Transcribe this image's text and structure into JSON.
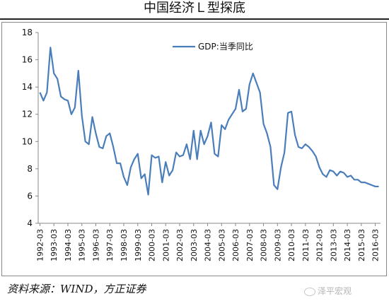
{
  "title": "中国经济Ｌ型探底",
  "source": "资料来源：WIND，方正证券",
  "watermark": "泽平宏观",
  "chart_data": {
    "type": "line",
    "title": "中国经济Ｌ型探底",
    "xlabel": "",
    "ylabel": "",
    "ylim": [
      4,
      18
    ],
    "yticks": [
      4,
      6,
      8,
      10,
      12,
      14,
      16,
      18
    ],
    "grid": false,
    "legend_position": "top-center",
    "x_tick_labels": [
      "1992-03",
      "1993-03",
      "1994-03",
      "1995-03",
      "1996-03",
      "1997-03",
      "1998-03",
      "1999-03",
      "2000-03",
      "2001-03",
      "2002-03",
      "2003-03",
      "2004-03",
      "2005-03",
      "2006-03",
      "2007-03",
      "2008-03",
      "2009-03",
      "2010-03",
      "2011-03",
      "2012-03",
      "2013-03",
      "2014-03",
      "2015-03",
      "2016-03"
    ],
    "series_color": "#4a7ebb",
    "series": [
      {
        "name": "GDP:当季同比",
        "x": [
          "1992-03",
          "1992-06",
          "1992-09",
          "1992-12",
          "1993-03",
          "1993-06",
          "1993-09",
          "1993-12",
          "1994-03",
          "1994-06",
          "1994-09",
          "1994-12",
          "1995-03",
          "1995-06",
          "1995-09",
          "1995-12",
          "1996-03",
          "1996-06",
          "1996-09",
          "1996-12",
          "1997-03",
          "1997-06",
          "1997-09",
          "1997-12",
          "1998-03",
          "1998-06",
          "1998-09",
          "1998-12",
          "1999-03",
          "1999-06",
          "1999-09",
          "1999-12",
          "2000-03",
          "2000-06",
          "2000-09",
          "2000-12",
          "2001-03",
          "2001-06",
          "2001-09",
          "2001-12",
          "2002-03",
          "2002-06",
          "2002-09",
          "2002-12",
          "2003-03",
          "2003-06",
          "2003-09",
          "2003-12",
          "2004-03",
          "2004-06",
          "2004-09",
          "2004-12",
          "2005-03",
          "2005-06",
          "2005-09",
          "2005-12",
          "2006-03",
          "2006-06",
          "2006-09",
          "2006-12",
          "2007-03",
          "2007-06",
          "2007-09",
          "2007-12",
          "2008-03",
          "2008-06",
          "2008-09",
          "2008-12",
          "2009-03",
          "2009-06",
          "2009-09",
          "2009-12",
          "2010-03",
          "2010-06",
          "2010-09",
          "2010-12",
          "2011-03",
          "2011-06",
          "2011-09",
          "2011-12",
          "2012-03",
          "2012-06",
          "2012-09",
          "2012-12",
          "2013-03",
          "2013-06",
          "2013-09",
          "2013-12",
          "2014-03",
          "2014-06",
          "2014-09",
          "2014-12",
          "2015-03",
          "2015-06",
          "2015-09",
          "2015-12",
          "2016-03",
          "2016-06"
        ],
        "values": [
          13.6,
          13.0,
          13.6,
          16.9,
          15.0,
          14.6,
          13.3,
          13.1,
          13.0,
          12.0,
          12.5,
          15.2,
          11.9,
          10.0,
          9.8,
          11.8,
          10.6,
          9.6,
          9.5,
          10.4,
          10.6,
          9.6,
          8.4,
          8.4,
          7.4,
          6.8,
          8.1,
          8.7,
          9.1,
          7.3,
          7.6,
          6.1,
          9.0,
          8.8,
          8.9,
          7.0,
          8.5,
          7.5,
          7.9,
          9.2,
          8.9,
          9.0,
          9.8,
          8.7,
          10.8,
          8.7,
          10.8,
          9.8,
          10.4,
          11.4,
          9.1,
          8.9,
          11.2,
          10.9,
          11.6,
          12.0,
          12.4,
          13.8,
          12.2,
          12.4,
          14.2,
          15.0,
          14.3,
          13.6,
          11.3,
          10.6,
          9.6,
          6.8,
          6.5,
          8.1,
          9.2,
          12.1,
          12.2,
          10.5,
          9.6,
          9.5,
          9.8,
          9.6,
          9.3,
          8.9,
          8.1,
          7.6,
          7.4,
          7.9,
          7.8,
          7.5,
          7.8,
          7.7,
          7.4,
          7.5,
          7.2,
          7.2,
          7.0,
          7.0,
          6.9,
          6.8,
          6.7,
          6.7
        ]
      }
    ]
  }
}
